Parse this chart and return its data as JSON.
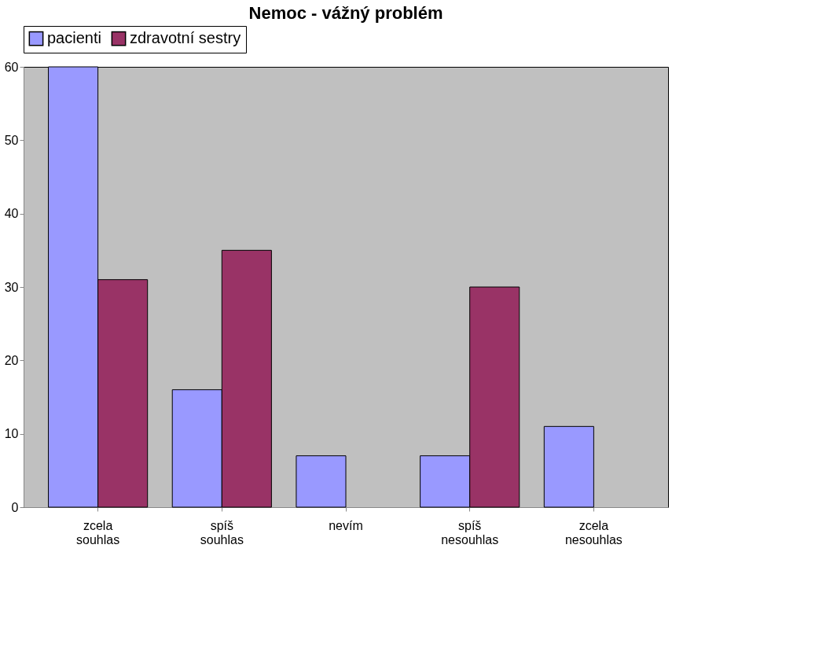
{
  "chart_data": {
    "type": "bar",
    "title": "Nemoc - vážný problém",
    "categories": [
      "zcela souhlas",
      "spíš souhlas",
      "nevím",
      "spíš nesouhlas",
      "zcela nesouhlas"
    ],
    "series": [
      {
        "name": "pacienti",
        "color": "#9999ff",
        "values": [
          60,
          16,
          7,
          7,
          11
        ]
      },
      {
        "name": "zdravotní sestry",
        "color": "#993366",
        "values": [
          31,
          35,
          0,
          30,
          0
        ]
      }
    ],
    "ylim": [
      0,
      60
    ],
    "yticks": [
      0,
      10,
      20,
      30,
      40,
      50,
      60
    ],
    "grid": false,
    "legend": "top"
  }
}
